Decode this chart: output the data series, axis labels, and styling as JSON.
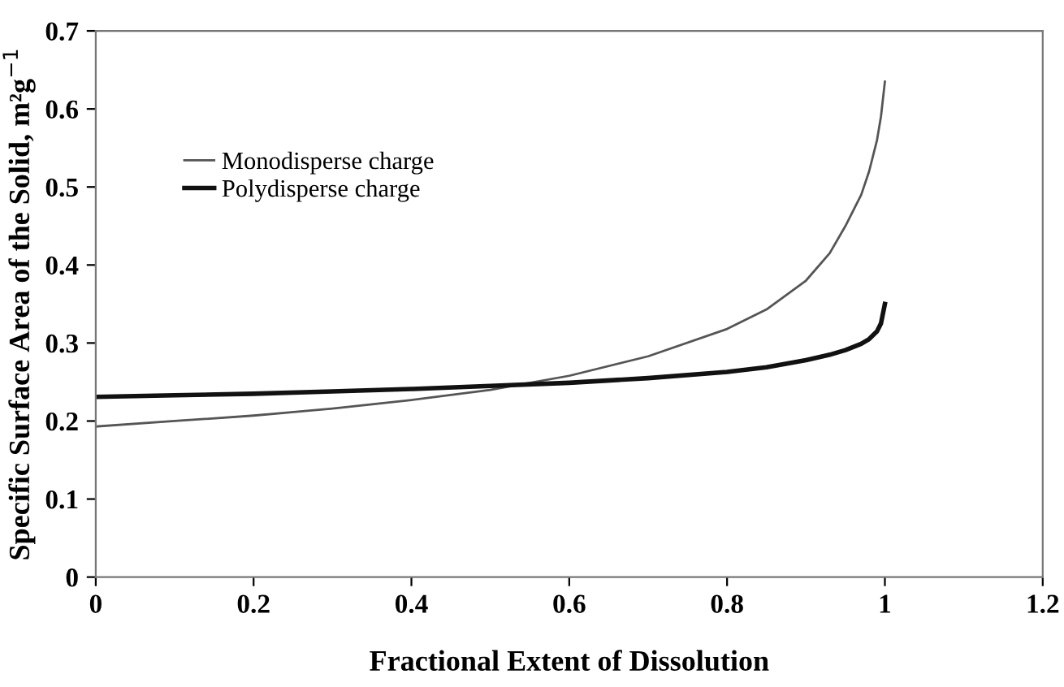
{
  "chart_data": {
    "type": "line",
    "xlabel": "Fractional Extent of Dissolution",
    "ylabel": "Specific Surface Area of the Solid, m²g$^{−1}$",
    "xlim": [
      0,
      1.2
    ],
    "xticks": [
      0,
      0.2,
      0.4,
      0.6,
      0.8,
      1,
      1.2
    ],
    "ylim": [
      0,
      0.7
    ],
    "yticks": [
      0,
      0.1,
      0.2,
      0.3,
      0.4,
      0.5,
      0.6,
      0.7
    ],
    "grid": false,
    "legend": "top left",
    "marker": "none",
    "line_style": "solid",
    "series": [
      {
        "name": "Monodisperse charge",
        "color": "#555555",
        "x": [
          0,
          0.1,
          0.2,
          0.3,
          0.4,
          0.5,
          0.6,
          0.7,
          0.8,
          0.85,
          0.9,
          0.93,
          0.95,
          0.97,
          0.98,
          0.99,
          0.995,
          1.0
        ],
        "values": [
          0.193,
          0.2,
          0.207,
          0.216,
          0.227,
          0.24,
          0.258,
          0.283,
          0.318,
          0.343,
          0.38,
          0.415,
          0.45,
          0.49,
          0.52,
          0.56,
          0.59,
          0.635
        ]
      },
      {
        "name": "Polydisperse charge",
        "color": "#111111",
        "x": [
          0,
          0.1,
          0.2,
          0.3,
          0.4,
          0.5,
          0.6,
          0.7,
          0.8,
          0.85,
          0.9,
          0.93,
          0.95,
          0.97,
          0.98,
          0.99,
          0.995,
          1.0
        ],
        "values": [
          0.231,
          0.233,
          0.235,
          0.238,
          0.241,
          0.245,
          0.249,
          0.255,
          0.263,
          0.269,
          0.278,
          0.285,
          0.291,
          0.299,
          0.305,
          0.315,
          0.325,
          0.35
        ]
      }
    ]
  }
}
